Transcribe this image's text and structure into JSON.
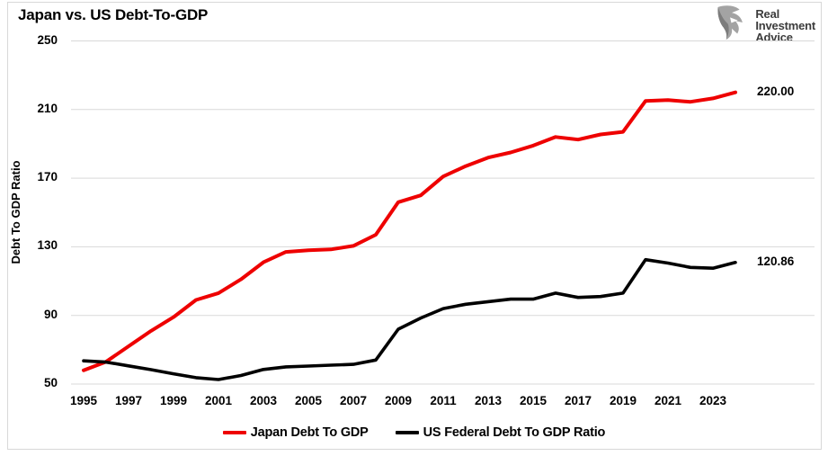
{
  "header": {
    "logo": {
      "lines": [
        "Real",
        "Investment",
        "Advice"
      ]
    }
  },
  "chart_data": {
    "type": "line",
    "title": "Japan vs. US Debt-To-GDP",
    "xlabel": "",
    "ylabel": "Debt To GDP Ratio",
    "ylim": [
      50,
      250
    ],
    "y_ticks": [
      250,
      210,
      170,
      130,
      90,
      50
    ],
    "grid": "horizontal",
    "legend_position": "bottom",
    "x": [
      1995,
      1996,
      1997,
      1998,
      1999,
      2000,
      2001,
      2002,
      2003,
      2004,
      2005,
      2006,
      2007,
      2008,
      2009,
      2010,
      2011,
      2012,
      2013,
      2014,
      2015,
      2016,
      2017,
      2018,
      2019,
      2020,
      2021,
      2022,
      2023,
      2024
    ],
    "x_tick_labels": [
      "1995",
      "1997",
      "1999",
      "2001",
      "2003",
      "2005",
      "2007",
      "2009",
      "2011",
      "2013",
      "2015",
      "2017",
      "2019",
      "2021",
      "2023"
    ],
    "series": [
      {
        "name": "Japan Debt To GDP",
        "color": "#ee0000",
        "width": 4,
        "end_label": "220.00",
        "values": [
          58,
          63,
          72,
          81,
          89,
          99,
          103,
          111,
          121,
          127,
          128,
          128.5,
          130.5,
          137,
          156,
          160,
          171,
          177,
          182,
          185,
          189,
          194,
          192.5,
          195.5,
          197,
          215,
          215.5,
          214.5,
          216.5,
          220
        ]
      },
      {
        "name": "US Federal Debt To GDP Ratio",
        "color": "#000000",
        "width": 3.6,
        "end_label": "120.86",
        "values": [
          63.5,
          62.8,
          60.6,
          58.4,
          56,
          53.7,
          52.6,
          55,
          58.5,
          60,
          60.5,
          61,
          61.5,
          64,
          82,
          88.5,
          94,
          96.5,
          98,
          99.5,
          99.5,
          103,
          100.5,
          101,
          103,
          122.5,
          120.5,
          118,
          117.5,
          120.86
        ]
      }
    ]
  }
}
